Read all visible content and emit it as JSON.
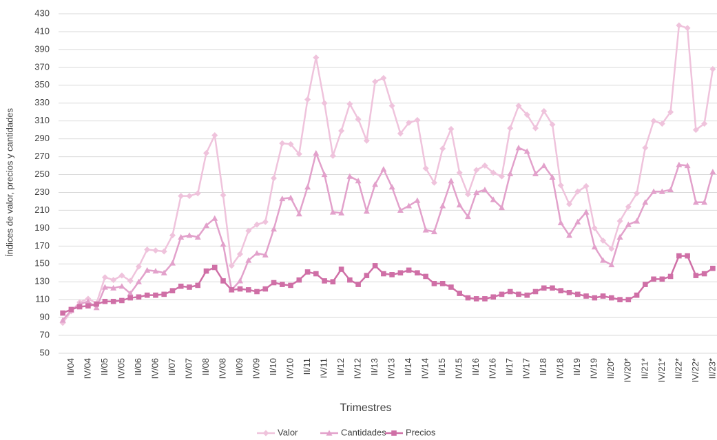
{
  "chart_data": {
    "type": "line",
    "y_label": "Índices de valor, precios y cantidades",
    "x_label": "Trimestres",
    "categories": [
      null,
      "II/04",
      null,
      "IV/04",
      null,
      "II/05",
      null,
      "IV/05",
      null,
      "II/06",
      null,
      "IV/06",
      null,
      "II/07",
      null,
      "IV/07",
      null,
      "II/08",
      null,
      "IV/08",
      null,
      "II/09",
      null,
      "IV/09",
      null,
      "II/10",
      null,
      "IV/10",
      null,
      "II/11",
      null,
      "IV/11",
      null,
      "II/12",
      null,
      "IV/12",
      null,
      "II/13",
      null,
      "IV/13",
      null,
      "II/14",
      null,
      "IV/14",
      null,
      "II/15",
      null,
      "IV/15",
      null,
      "II/16",
      null,
      "IV/16",
      null,
      "II/17",
      null,
      "IV/17",
      null,
      "II/18",
      null,
      "IV/18",
      null,
      "II/19",
      null,
      "IV/19",
      null,
      "II/20*",
      null,
      "IV/20*",
      null,
      "II/21*",
      null,
      "IV/21*",
      null,
      "II/22*",
      null,
      "IV/22*",
      null,
      "II/23*"
    ],
    "series": [
      {
        "name": "Valor",
        "color": "#efc3dc",
        "marker": "diamond",
        "values": [
          84,
          97,
          107,
          111,
          106,
          135,
          132,
          137,
          131,
          147,
          166,
          165,
          164,
          182,
          226,
          226,
          229,
          274,
          294,
          227,
          148,
          161,
          187,
          194,
          197,
          246,
          285,
          284,
          273,
          334,
          381,
          330,
          271,
          299,
          329,
          312,
          288,
          354,
          358,
          327,
          296,
          308,
          311,
          257,
          241,
          279,
          301,
          252,
          228,
          255,
          260,
          252,
          248,
          302,
          327,
          317,
          302,
          321,
          306,
          238,
          217,
          231,
          237,
          190,
          176,
          167,
          198,
          214,
          229,
          280,
          310,
          307,
          320,
          417,
          414,
          300,
          307,
          368
        ]
      },
      {
        "name": "Cantidades",
        "color": "#e2a1cb",
        "marker": "triangle",
        "values": [
          87,
          98,
          105,
          108,
          101,
          124,
          123,
          125,
          117,
          130,
          143,
          142,
          140,
          151,
          180,
          182,
          180,
          193,
          201,
          172,
          121,
          131,
          154,
          162,
          160,
          189,
          223,
          224,
          206,
          236,
          274,
          250,
          208,
          207,
          248,
          243,
          209,
          239,
          256,
          236,
          210,
          215,
          221,
          188,
          186,
          215,
          243,
          216,
          203,
          230,
          233,
          222,
          213,
          251,
          280,
          276,
          251,
          260,
          247,
          196,
          182,
          197,
          208,
          169,
          154,
          149,
          180,
          194,
          198,
          219,
          231,
          231,
          233,
          261,
          260,
          219,
          219,
          253
        ]
      },
      {
        "name": "Precios",
        "color": "#cf6fa6",
        "marker": "square",
        "values": [
          95,
          99,
          102,
          103,
          105,
          108,
          108,
          109,
          112,
          113,
          115,
          115,
          116,
          120,
          125,
          124,
          126,
          142,
          146,
          131,
          121,
          122,
          121,
          119,
          122,
          129,
          127,
          126,
          132,
          141,
          139,
          131,
          130,
          144,
          132,
          127,
          137,
          148,
          139,
          138,
          140,
          143,
          140,
          136,
          128,
          128,
          124,
          117,
          112,
          111,
          111,
          113,
          116,
          119,
          116,
          115,
          119,
          123,
          123,
          120,
          118,
          116,
          114,
          112,
          114,
          112,
          110,
          110,
          115,
          127,
          133,
          133,
          136,
          159,
          159,
          137,
          139,
          145
        ]
      }
    ],
    "ylim": [
      50,
      430
    ],
    "yticks": [
      50,
      70,
      90,
      110,
      130,
      150,
      170,
      190,
      210,
      230,
      250,
      270,
      290,
      310,
      330,
      350,
      370,
      390,
      410,
      430
    ],
    "grid": true
  }
}
